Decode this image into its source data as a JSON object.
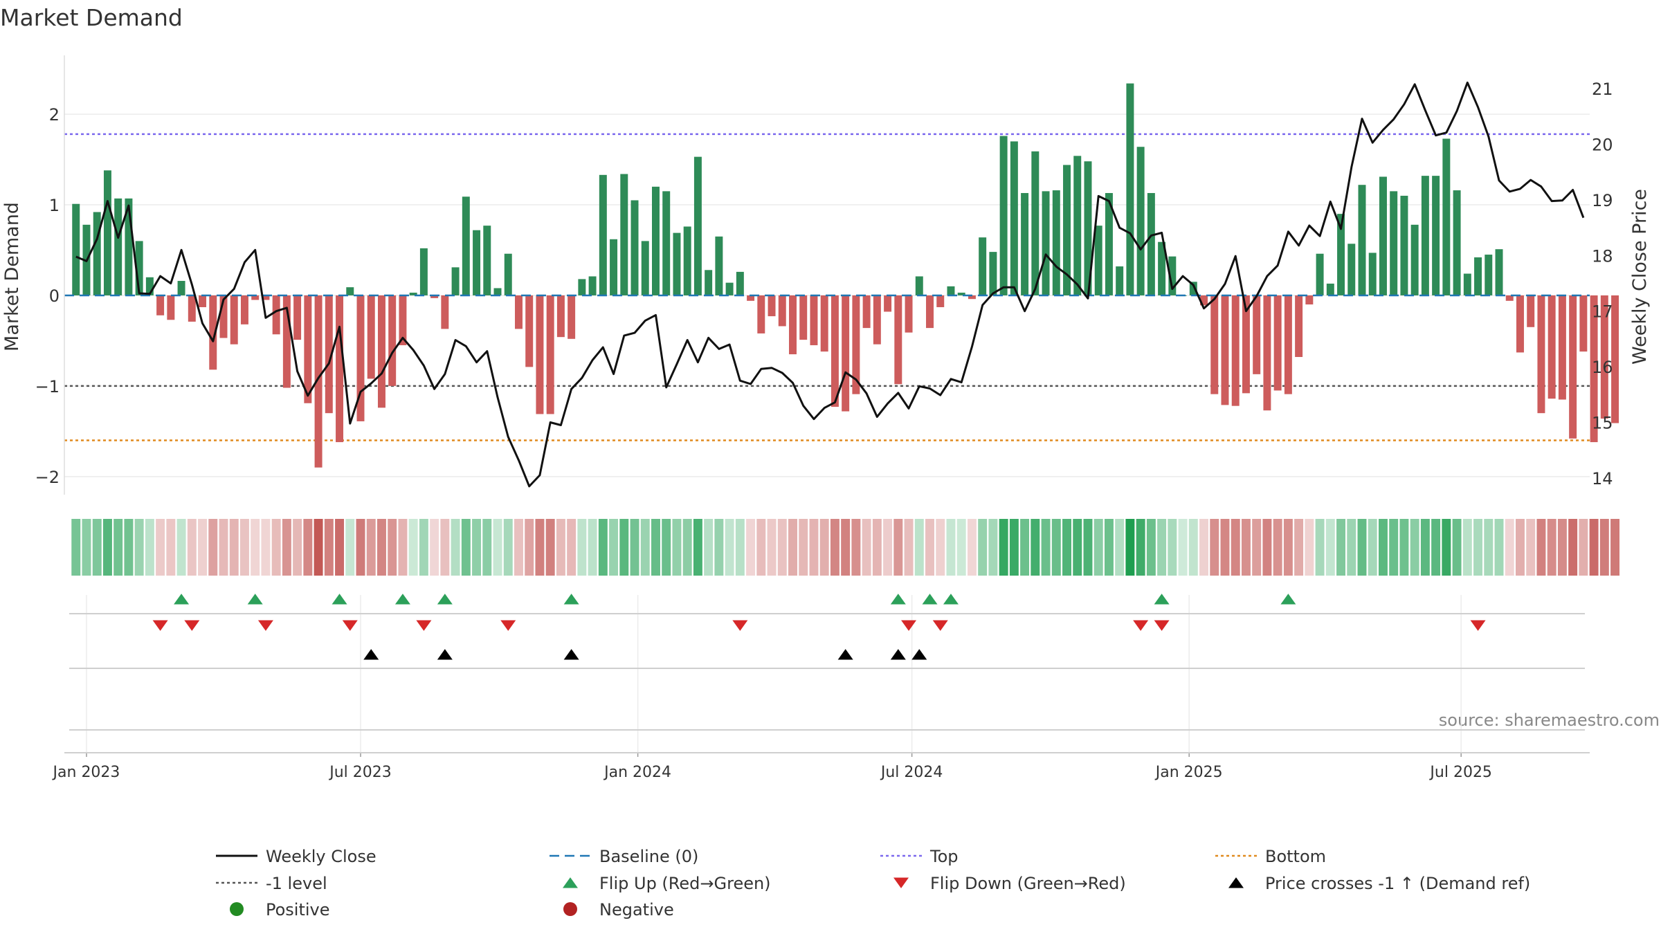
{
  "chart_data": {
    "type": "bar",
    "title": "Market Demand",
    "ylabel_left": "Market Demand",
    "ylabel_right": "Weekly Close Price",
    "source": "source: sharemaestro.com",
    "ylim_left": [
      -2.2,
      2.65
    ],
    "ylim_right": [
      13.7,
      21.6
    ],
    "yticks_left": [
      2,
      1,
      0,
      -1,
      -2
    ],
    "ytick_labels_left": [
      "2",
      "1",
      "0",
      "−1",
      "−2"
    ],
    "yticks_right": [
      21,
      20,
      19,
      18,
      17,
      16,
      15,
      14
    ],
    "ytick_labels_right": [
      "21",
      "20",
      "19",
      "18",
      "17",
      "16",
      "15",
      "14"
    ],
    "x_range_weeks": [
      -1.1,
      143.6
    ],
    "x_ticks": [
      {
        "label": "Jan 2023",
        "week": 1
      },
      {
        "label": "Jul 2023",
        "week": 27
      },
      {
        "label": "Jan 2024",
        "week": 53.3
      },
      {
        "label": "Jul 2024",
        "week": 79.3
      },
      {
        "label": "Jan 2025",
        "week": 105.6
      },
      {
        "label": "Jul 2025",
        "week": 131.4
      }
    ],
    "reference_lines": {
      "top": 1.78,
      "bottom": -1.6,
      "minus_one": -1,
      "baseline": 0
    },
    "demand": [
      1.01,
      0.78,
      0.92,
      1.38,
      1.07,
      1.07,
      0.6,
      0.2,
      -0.22,
      -0.27,
      0.16,
      -0.29,
      -0.13,
      -0.82,
      -0.47,
      -0.54,
      -0.32,
      -0.05,
      -0.05,
      -0.43,
      -1.02,
      -0.49,
      -1.19,
      -1.9,
      -1.3,
      -1.62,
      0.09,
      -1.39,
      -0.92,
      -1.24,
      -1.0,
      -0.55,
      0.03,
      0.52,
      -0.03,
      -0.37,
      0.31,
      1.09,
      0.72,
      0.77,
      0.08,
      0.46,
      -0.37,
      -0.79,
      -1.31,
      -1.31,
      -0.46,
      -0.48,
      0.18,
      0.21,
      1.33,
      0.62,
      1.34,
      1.05,
      0.6,
      1.2,
      1.15,
      0.69,
      0.76,
      1.53,
      0.28,
      0.65,
      0.14,
      0.26,
      -0.06,
      -0.42,
      -0.23,
      -0.34,
      -0.65,
      -0.49,
      -0.55,
      -0.62,
      -1.23,
      -1.28,
      -1.09,
      -0.36,
      -0.54,
      -0.18,
      -0.98,
      -0.41,
      0.21,
      -0.36,
      -0.13,
      0.1,
      0.03,
      -0.04,
      0.64,
      0.48,
      1.76,
      1.7,
      1.13,
      1.59,
      1.15,
      1.16,
      1.44,
      1.54,
      1.48,
      0.77,
      1.13,
      0.32,
      2.34,
      1.64,
      1.13,
      0.59,
      0.43,
      0.0,
      0.15,
      -0.11,
      -1.09,
      -1.21,
      -1.22,
      -1.08,
      -0.87,
      -1.27,
      -1.05,
      -1.09,
      -0.68,
      -0.1,
      0.46,
      0.13,
      0.9,
      0.57,
      1.22,
      0.47,
      1.31,
      1.15,
      1.1,
      0.78,
      1.32,
      1.32,
      1.73,
      1.16,
      0.24,
      0.42,
      0.45,
      0.51,
      -0.06,
      -0.63,
      -0.35,
      -1.3,
      -1.14,
      -1.15,
      -1.58,
      -0.62,
      -1.62,
      -1.36,
      -1.41
    ],
    "weekly_close": [
      17.98,
      17.9,
      18.3,
      18.98,
      18.32,
      18.9,
      17.32,
      17.31,
      17.63,
      17.5,
      18.1,
      17.48,
      16.78,
      16.46,
      17.21,
      17.4,
      17.88,
      18.1,
      16.88,
      17.0,
      17.06,
      15.92,
      15.48,
      15.8,
      16.06,
      16.72,
      14.98,
      15.55,
      15.7,
      15.88,
      16.25,
      16.52,
      16.3,
      16.02,
      15.6,
      15.87,
      16.48,
      16.37,
      16.08,
      16.28,
      15.45,
      14.74,
      14.32,
      13.85,
      14.05,
      15.0,
      14.95,
      15.6,
      15.8,
      16.12,
      16.35,
      15.87,
      16.56,
      16.61,
      16.83,
      16.93,
      15.63,
      16.05,
      16.48,
      16.08,
      16.52,
      16.32,
      16.4,
      15.75,
      15.69,
      15.96,
      15.98,
      15.89,
      15.71,
      15.3,
      15.06,
      15.26,
      15.36,
      15.9,
      15.77,
      15.52,
      15.1,
      15.34,
      15.53,
      15.25,
      15.65,
      15.61,
      15.49,
      15.78,
      15.72,
      16.36,
      17.11,
      17.32,
      17.43,
      17.43,
      17.0,
      17.4,
      18.02,
      17.8,
      17.66,
      17.48,
      17.23,
      19.07,
      18.98,
      18.5,
      18.4,
      18.11,
      18.36,
      18.41,
      17.4,
      17.63,
      17.47,
      17.05,
      17.22,
      17.49,
      17.99,
      17.0,
      17.27,
      17.63,
      17.82,
      18.43,
      18.18,
      18.54,
      18.35,
      18.97,
      18.48,
      19.59,
      20.46,
      20.03,
      20.26,
      20.45,
      20.72,
      21.08,
      20.61,
      20.16,
      20.21,
      20.6,
      21.11,
      20.67,
      20.14,
      19.35,
      19.15,
      19.2,
      19.36,
      19.24,
      18.98,
      18.99,
      19.18,
      18.68
    ],
    "heat_strip": "Demand-coloured strip: green = positive weeks, red = negative weeks, intensity = magnitude",
    "flip_up_weeks": [
      10,
      17,
      25,
      31,
      35,
      47,
      78,
      81,
      83,
      103,
      115
    ],
    "flip_down_weeks": [
      8,
      11,
      18,
      26,
      33,
      41,
      63,
      79,
      82,
      101,
      103,
      133
    ],
    "price_cross_weeks": [
      28,
      35,
      47,
      73,
      78,
      80
    ],
    "legend": [
      {
        "label": "Weekly Close",
        "marker": "solid-line",
        "color": "#111111"
      },
      {
        "label": "Baseline (0)",
        "marker": "dashed-line",
        "color": "#1f77b4"
      },
      {
        "label": "Top",
        "marker": "dotted-line",
        "color": "#7b68ee"
      },
      {
        "label": "Bottom",
        "marker": "dotted-line",
        "color": "#e08a1e"
      },
      {
        "label": "-1 level",
        "marker": "dotted-line",
        "color": "#555555"
      },
      {
        "label": "Flip Up (Red→Green)",
        "marker": "triangle-up",
        "color": "#2ca05a"
      },
      {
        "label": "Flip Down (Green→Red)",
        "marker": "triangle-down",
        "color": "#d62728"
      },
      {
        "label": "Price crosses -1 ↑ (Demand ref)",
        "marker": "triangle-up",
        "color": "#000000"
      },
      {
        "label": "Positive",
        "marker": "dot",
        "color": "#228b22"
      },
      {
        "label": "Negative",
        "marker": "dot",
        "color": "#b22222"
      }
    ],
    "colors": {
      "positive_bar": "#2e8b57",
      "negative_bar": "#cd5c5c",
      "close_line": "#111111",
      "baseline": "#1f77b4",
      "top_line": "#7b68ee",
      "bottom_line": "#e08a1e",
      "minus_one_line": "#555555",
      "flip_up": "#2ca05a",
      "flip_down": "#d62728",
      "price_cross": "#000000",
      "source_text": "#888888"
    }
  }
}
